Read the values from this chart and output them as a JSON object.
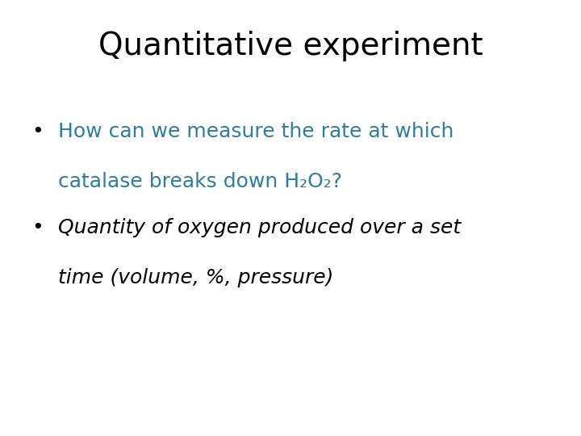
{
  "title": "Quantitative experiment",
  "title_color": "#000000",
  "title_fontsize": 28,
  "background_color": "#ffffff",
  "bullet1_line1": "How can we measure the rate at which",
  "bullet1_line2": "catalase breaks down H₂O₂?",
  "bullet1_color": "#2e7d9e",
  "bullet2_line1": "Quantity of oxygen produced over a set",
  "bullet2_line2": "time (volume, %, pressure)",
  "bullet2_color": "#000000",
  "bullet_fontsize": 18,
  "bullet_color": "#000000",
  "bullet_dot": "•"
}
